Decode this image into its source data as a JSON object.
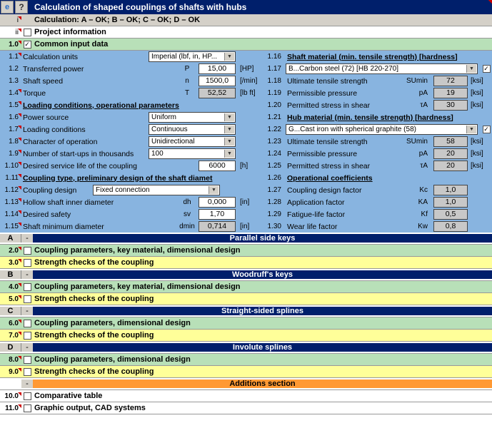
{
  "titlebar": {
    "title": "Calculation of shaped couplings of shafts with hubs",
    "help": "?"
  },
  "topRows": {
    "i": {
      "num": "i",
      "label": "Calculation:   A – OK;   B – OK;   C – OK;   D – OK"
    },
    "ii": {
      "num": "ii",
      "label": "Project information"
    }
  },
  "section1": {
    "num": "1.0",
    "label": "Common input data"
  },
  "left": {
    "r1": {
      "num": "1.1",
      "label": "Calculation units",
      "dropdown": "Imperial (lbf, in, HP..."
    },
    "r2": {
      "num": "1.2",
      "label": "Transferred power",
      "sym": "P",
      "val": "15,00",
      "unit": "[HP]"
    },
    "r3": {
      "num": "1.3",
      "label": "Shaft speed",
      "sym": "n",
      "val": "1500,0",
      "unit": "[/min]"
    },
    "r4": {
      "num": "1.4",
      "label": "Torque",
      "sym": "T",
      "val": "52,52",
      "unit": "[lb ft]"
    },
    "h5": {
      "num": "1.5",
      "label": "Loading conditions, operational parameters"
    },
    "r6": {
      "num": "1.6",
      "label": "Power source",
      "dropdown": "Uniform"
    },
    "r7": {
      "num": "1.7",
      "label": "Loading conditions",
      "dropdown": "Continuous"
    },
    "r8": {
      "num": "1.8",
      "label": "Character of operation",
      "dropdown": "Unidirectional"
    },
    "r9": {
      "num": "1.9",
      "label": "Number of start-ups in thousands",
      "dropdown": "100"
    },
    "r10": {
      "num": "1.10",
      "label": "Desired service life of the coupling",
      "val": "6000",
      "unit": "[h]"
    },
    "h11": {
      "num": "1.11",
      "label": "Coupling type, preliminary design of the shaft diamet"
    },
    "r12": {
      "num": "1.12",
      "label": "Coupling design",
      "dropdown": "Fixed connection"
    },
    "r13": {
      "num": "1.13",
      "label": "Hollow shaft inner diameter",
      "sym": "dh",
      "val": "0,000",
      "unit": "[in]"
    },
    "r14": {
      "num": "1.14",
      "label": "Desired safety",
      "sym": "sv",
      "val": "1,70"
    },
    "r15": {
      "num": "1.15",
      "label": "Shaft minimum diameter",
      "sym": "dmin",
      "val": "0,714",
      "unit": "[in]"
    }
  },
  "right": {
    "h16": {
      "num": "1.16",
      "label": "Shaft material (min. tensile strength) [hardness]"
    },
    "r17": {
      "num": "1.17",
      "dropdown": "B...Carbon steel   (72)     [HB 220-270]"
    },
    "r18": {
      "num": "1.18",
      "label": "Ultimate tensile strength",
      "sym": "SUmin",
      "val": "72",
      "unit": "[ksi]"
    },
    "r19": {
      "num": "1.19",
      "label": "Permissible pressure",
      "sym": "pA",
      "val": "19",
      "unit": "[ksi]"
    },
    "r20": {
      "num": "1.20",
      "label": "Permitted stress in shear",
      "sym": "τA",
      "val": "30",
      "unit": "[ksi]"
    },
    "h21": {
      "num": "1.21",
      "label": "Hub material (min. tensile strength) [hardness]"
    },
    "r22": {
      "num": "1.22",
      "dropdown": "G...Cast iron with spherical graphite   (58)"
    },
    "r23": {
      "num": "1.23",
      "label": "Ultimate tensile strength",
      "sym": "SUmin",
      "val": "58",
      "unit": "[ksi]"
    },
    "r24": {
      "num": "1.24",
      "label": "Permissible pressure",
      "sym": "pA",
      "val": "20",
      "unit": "[ksi]"
    },
    "r25": {
      "num": "1.25",
      "label": "Permitted stress in shear",
      "sym": "τA",
      "val": "20",
      "unit": "[ksi]"
    },
    "h26": {
      "num": "1.26",
      "label": "Operational coefficients"
    },
    "r27": {
      "num": "1.27",
      "label": "Coupling design factor",
      "sym": "Kc",
      "val": "1,0"
    },
    "r28": {
      "num": "1.28",
      "label": "Application factor",
      "sym": "KA",
      "val": "1,0"
    },
    "r29": {
      "num": "1.29",
      "label": "Fatigue-life factor",
      "sym": "Kf",
      "val": "0,5"
    },
    "r30": {
      "num": "1.30",
      "label": "Wear life factor",
      "sym": "Kw",
      "val": "0,8"
    }
  },
  "sections": {
    "A": {
      "letter": "A",
      "title": "Parallel side keys",
      "rows": [
        {
          "num": "2.0",
          "bg": "green",
          "label": "Coupling parameters, key material, dimensional design"
        },
        {
          "num": "3.0",
          "bg": "yellow",
          "label": "Strength checks of the coupling"
        }
      ]
    },
    "B": {
      "letter": "B",
      "title": "Woodruff's keys",
      "rows": [
        {
          "num": "4.0",
          "bg": "green",
          "label": "Coupling parameters, key material, dimensional design"
        },
        {
          "num": "5.0",
          "bg": "yellow",
          "label": "Strength checks of the coupling"
        }
      ]
    },
    "C": {
      "letter": "C",
      "title": "Straight-sided splines",
      "rows": [
        {
          "num": "6.0",
          "bg": "green",
          "label": "Coupling parameters, dimensional design"
        },
        {
          "num": "7.0",
          "bg": "yellow",
          "label": "Strength checks of the coupling"
        }
      ]
    },
    "D": {
      "letter": "D",
      "title": "Involute splines",
      "rows": [
        {
          "num": "8.0",
          "bg": "green",
          "label": "Coupling parameters, dimensional design"
        },
        {
          "num": "9.0",
          "bg": "yellow",
          "label": "Strength checks of the coupling"
        }
      ]
    },
    "Add": {
      "title": "Additions section",
      "rows": [
        {
          "num": "10.0",
          "bg": "white",
          "label": "Comparative table"
        },
        {
          "num": "11.0",
          "bg": "white",
          "label": "Graphic output, CAD systems"
        }
      ]
    }
  }
}
